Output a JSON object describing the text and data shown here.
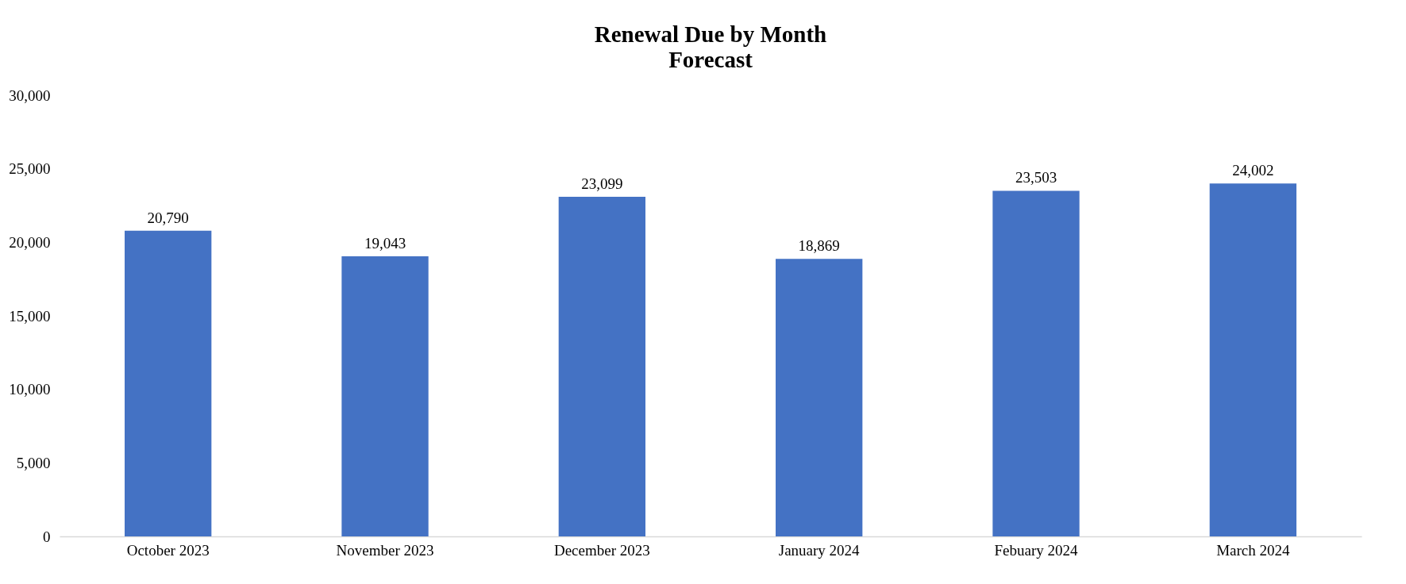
{
  "chart_data": {
    "type": "bar",
    "title": "Renewal Due by Month",
    "subtitle": "Forecast",
    "categories": [
      "October 2023",
      "November 2023",
      "December 2023",
      "January 2024",
      "Febuary 2024",
      "March 2024"
    ],
    "values": [
      20790,
      19043,
      23099,
      18869,
      23503,
      24002
    ],
    "value_labels": [
      "20,790",
      "19,043",
      "23,099",
      "18,869",
      "23,503",
      "24,002"
    ],
    "color": "#4472c4",
    "ylim": [
      0,
      30000
    ],
    "yticks": [
      0,
      {
        "value": 5000,
        "label": "5,000"
      },
      {
        "value": 10000,
        "label": "10,000"
      },
      {
        "value": 15000,
        "label": "15,000"
      },
      {
        "value": 20000,
        "label": "20,000"
      },
      {
        "value": 25000,
        "label": "25,000"
      },
      {
        "value": 30000,
        "label": "30,000"
      }
    ],
    "grid": false
  }
}
